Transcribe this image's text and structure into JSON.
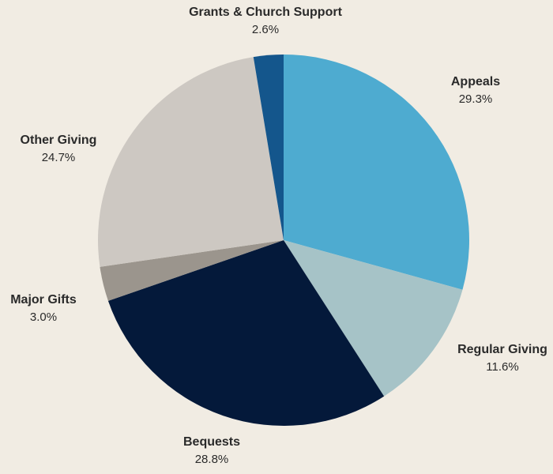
{
  "chart_data": {
    "type": "pie",
    "start_angle_deg": 0,
    "direction": "clockwise",
    "legend": "none",
    "slices": [
      {
        "name": "Appeals",
        "value": 29.3,
        "label": "29.3%",
        "color": "#4eabd0"
      },
      {
        "name": "Regular Giving",
        "value": 11.6,
        "label": "11.6%",
        "color": "#a6c3c7"
      },
      {
        "name": "Bequests",
        "value": 28.8,
        "label": "28.8%",
        "color": "#04193a"
      },
      {
        "name": "Major Gifts",
        "value": 3.0,
        "label": "3.0%",
        "color": "#9b958d"
      },
      {
        "name": "Other Giving",
        "value": 24.7,
        "label": "24.7%",
        "color": "#cdc8c2"
      },
      {
        "name": "Grants & Church Support",
        "value": 2.6,
        "label": "2.6%",
        "color": "#14568c"
      }
    ]
  }
}
